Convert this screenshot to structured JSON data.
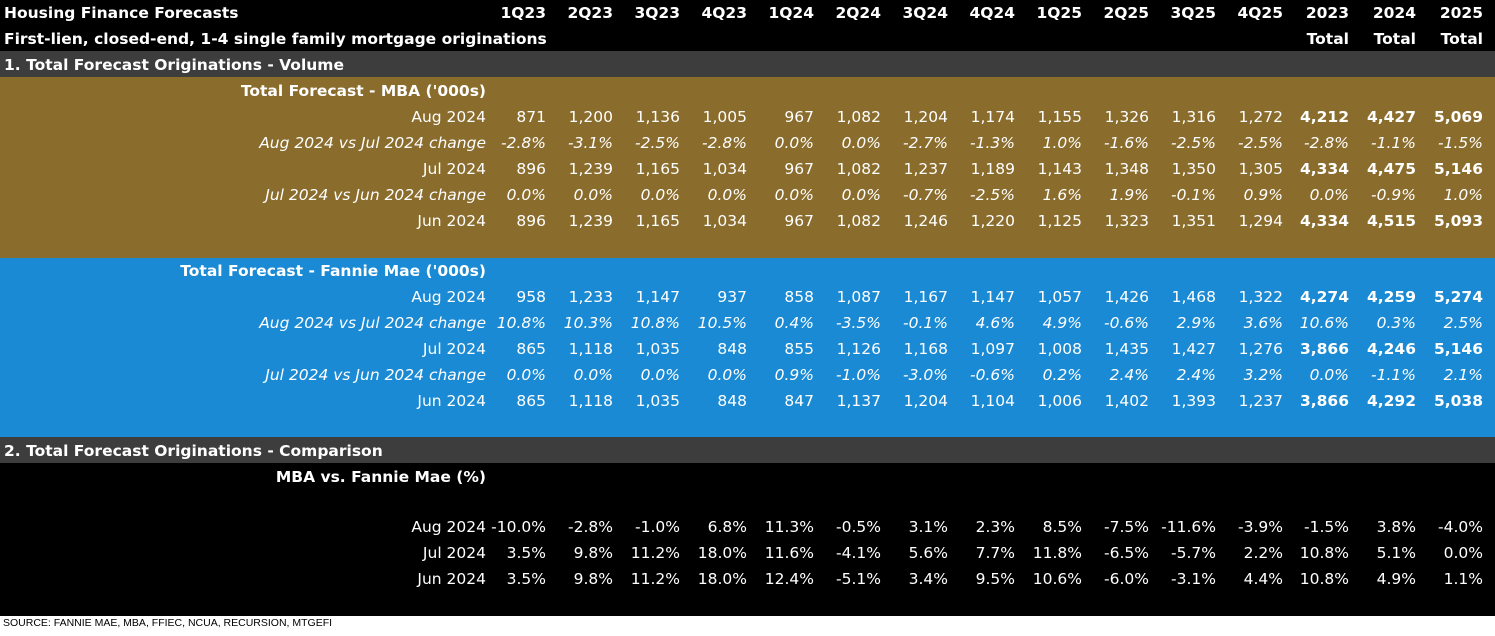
{
  "title": "Housing Finance Forecasts",
  "subtitle": "First-lien, closed-end, 1-4 single family mortgage originations",
  "columns": [
    "1Q23",
    "2Q23",
    "3Q23",
    "4Q23",
    "1Q24",
    "2Q24",
    "3Q24",
    "4Q24",
    "1Q25",
    "2Q25",
    "3Q25",
    "4Q25",
    "2023",
    "2024",
    "2025"
  ],
  "total_row": [
    "",
    "",
    "",
    "",
    "",
    "",
    "",
    "",
    "",
    "",
    "",
    "",
    "Total",
    "Total",
    "Total"
  ],
  "colors": {
    "header_bg": "#000000",
    "section_bar": "#3d3d3d",
    "mba_band": "#8a6c2c",
    "fannie_band": "#1a8ad4",
    "comparison_band": "#000000",
    "text": "#ffffff"
  },
  "section1": {
    "title": "1. Total Forecast Originations - Volume",
    "mba": {
      "title": "Total Forecast - MBA ('000s)",
      "rows": [
        {
          "label": "Aug 2024",
          "italic": false,
          "values": [
            "871",
            "1,200",
            "1,136",
            "1,005",
            "967",
            "1,082",
            "1,204",
            "1,174",
            "1,155",
            "1,326",
            "1,316",
            "1,272",
            "4,212",
            "4,427",
            "5,069"
          ]
        },
        {
          "label": "Aug 2024 vs Jul 2024 change",
          "italic": true,
          "values": [
            "-2.8%",
            "-3.1%",
            "-2.5%",
            "-2.8%",
            "0.0%",
            "0.0%",
            "-2.7%",
            "-1.3%",
            "1.0%",
            "-1.6%",
            "-2.5%",
            "-2.5%",
            "-2.8%",
            "-1.1%",
            "-1.5%"
          ]
        },
        {
          "label": "Jul 2024",
          "italic": false,
          "values": [
            "896",
            "1,239",
            "1,165",
            "1,034",
            "967",
            "1,082",
            "1,237",
            "1,189",
            "1,143",
            "1,348",
            "1,350",
            "1,305",
            "4,334",
            "4,475",
            "5,146"
          ]
        },
        {
          "label": "Jul 2024 vs Jun 2024 change",
          "italic": true,
          "values": [
            "0.0%",
            "0.0%",
            "0.0%",
            "0.0%",
            "0.0%",
            "0.0%",
            "-0.7%",
            "-2.5%",
            "1.6%",
            "1.9%",
            "-0.1%",
            "0.9%",
            "0.0%",
            "-0.9%",
            "1.0%"
          ]
        },
        {
          "label": "Jun 2024",
          "italic": false,
          "values": [
            "896",
            "1,239",
            "1,165",
            "1,034",
            "967",
            "1,082",
            "1,246",
            "1,220",
            "1,125",
            "1,323",
            "1,351",
            "1,294",
            "4,334",
            "4,515",
            "5,093"
          ]
        }
      ]
    },
    "fannie": {
      "title": "Total Forecast - Fannie Mae ('000s)",
      "rows": [
        {
          "label": "Aug 2024",
          "italic": false,
          "values": [
            "958",
            "1,233",
            "1,147",
            "937",
            "858",
            "1,087",
            "1,167",
            "1,147",
            "1,057",
            "1,426",
            "1,468",
            "1,322",
            "4,274",
            "4,259",
            "5,274"
          ]
        },
        {
          "label": "Aug 2024 vs Jul 2024 change",
          "italic": true,
          "values": [
            "10.8%",
            "10.3%",
            "10.8%",
            "10.5%",
            "0.4%",
            "-3.5%",
            "-0.1%",
            "4.6%",
            "4.9%",
            "-0.6%",
            "2.9%",
            "3.6%",
            "10.6%",
            "0.3%",
            "2.5%"
          ]
        },
        {
          "label": "Jul 2024",
          "italic": false,
          "values": [
            "865",
            "1,118",
            "1,035",
            "848",
            "855",
            "1,126",
            "1,168",
            "1,097",
            "1,008",
            "1,435",
            "1,427",
            "1,276",
            "3,866",
            "4,246",
            "5,146"
          ]
        },
        {
          "label": "Jul 2024 vs Jun 2024 change",
          "italic": true,
          "values": [
            "0.0%",
            "0.0%",
            "0.0%",
            "0.0%",
            "0.9%",
            "-1.0%",
            "-3.0%",
            "-0.6%",
            "0.2%",
            "2.4%",
            "2.4%",
            "3.2%",
            "0.0%",
            "-1.1%",
            "2.1%"
          ]
        },
        {
          "label": "Jun 2024",
          "italic": false,
          "values": [
            "865",
            "1,118",
            "1,035",
            "848",
            "847",
            "1,137",
            "1,204",
            "1,104",
            "1,006",
            "1,402",
            "1,393",
            "1,237",
            "3,866",
            "4,292",
            "5,038"
          ]
        }
      ]
    }
  },
  "section2": {
    "title": "2. Total Forecast Originations - Comparison",
    "comparison": {
      "title": "MBA vs. Fannie Mae (%)",
      "rows": [
        {
          "label": "Aug 2024",
          "italic": false,
          "values": [
            "-10.0%",
            "-2.8%",
            "-1.0%",
            "6.8%",
            "11.3%",
            "-0.5%",
            "3.1%",
            "2.3%",
            "8.5%",
            "-7.5%",
            "-11.6%",
            "-3.9%",
            "-1.5%",
            "3.8%",
            "-4.0%"
          ]
        },
        {
          "label": "Jul 2024",
          "italic": false,
          "values": [
            "3.5%",
            "9.8%",
            "11.2%",
            "18.0%",
            "11.6%",
            "-4.1%",
            "5.6%",
            "7.7%",
            "11.8%",
            "-6.5%",
            "-5.7%",
            "2.2%",
            "10.8%",
            "5.1%",
            "0.0%"
          ]
        },
        {
          "label": "Jun 2024",
          "italic": false,
          "values": [
            "3.5%",
            "9.8%",
            "11.2%",
            "18.0%",
            "12.4%",
            "-5.1%",
            "3.4%",
            "9.5%",
            "10.6%",
            "-6.0%",
            "-3.1%",
            "4.4%",
            "10.8%",
            "4.9%",
            "1.1%"
          ]
        }
      ]
    }
  },
  "source": "SOURCE: FANNIE MAE, MBA, FFIEC, NCUA, RECURSION, MTGEFI"
}
